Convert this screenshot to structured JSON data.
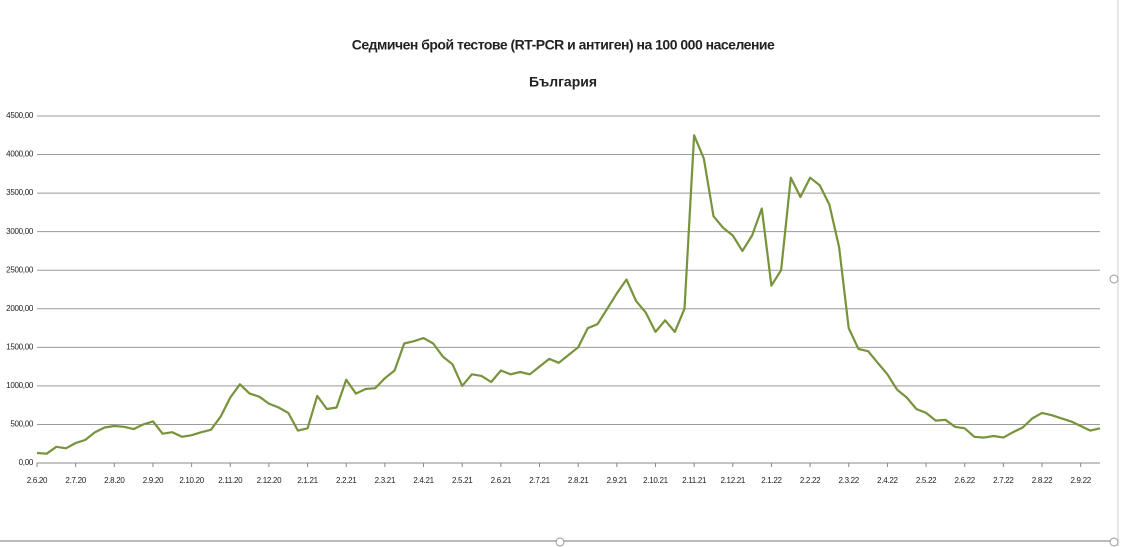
{
  "chart_data": {
    "type": "line",
    "title": "Седмичен брой тестове (RT-PCR и антиген) на 100 000 население",
    "subtitle": "България",
    "categories": [
      "2.6.20",
      null,
      null,
      null,
      "2.7.20",
      null,
      null,
      null,
      "2.8.20",
      null,
      null,
      null,
      "2.9.20",
      null,
      null,
      null,
      "2.10.20",
      null,
      null,
      null,
      "2.11.20",
      null,
      null,
      null,
      "2.12.20",
      null,
      null,
      null,
      "2.1.21",
      null,
      null,
      null,
      "2.2.21",
      null,
      null,
      null,
      "2.3.21",
      null,
      null,
      null,
      "2.4.21",
      null,
      null,
      null,
      "2.5.21",
      null,
      null,
      null,
      "2.6.21",
      null,
      null,
      null,
      "2.7.21",
      null,
      null,
      null,
      "2.8.21",
      null,
      null,
      null,
      "2.9.21",
      null,
      null,
      null,
      "2.10.21",
      null,
      null,
      null,
      "2.11.21",
      null,
      null,
      null,
      "2.12.21",
      null,
      null,
      null,
      "2.1.22",
      null,
      null,
      null,
      "2.2.22",
      null,
      null,
      null,
      "2.3.22",
      null,
      null,
      null,
      "2.4.22",
      null,
      null,
      null,
      "2.5.22",
      null,
      null,
      null,
      "2.6.22",
      null,
      null,
      null,
      "2.7.22",
      null,
      null,
      null,
      "2.8.22",
      null,
      null,
      null,
      "2.9.22",
      null,
      null
    ],
    "series": [
      {
        "color": "#77933c",
        "values": [
          130,
          120,
          210,
          190,
          260,
          300,
          400,
          460,
          480,
          470,
          440,
          500,
          540,
          380,
          400,
          340,
          360,
          400,
          430,
          600,
          850,
          1020,
          900,
          860,
          770,
          720,
          650,
          420,
          450,
          870,
          700,
          720,
          1080,
          900,
          960,
          970,
          1100,
          1200,
          1550,
          1580,
          1620,
          1550,
          1380,
          1280,
          1000,
          1150,
          1130,
          1050,
          1200,
          1150,
          1180,
          1150,
          1250,
          1350,
          1300,
          1400,
          1500,
          1750,
          1800,
          2000,
          2200,
          2380,
          2100,
          1950,
          1700,
          1850,
          1700,
          2000,
          4250,
          3950,
          3200,
          3050,
          2950,
          2750,
          2950,
          3300,
          2300,
          2500,
          3700,
          3450,
          3700,
          3600,
          3350,
          2800,
          1750,
          1480,
          1450,
          1300,
          1150,
          950,
          850,
          700,
          650,
          550,
          560,
          470,
          450,
          340,
          330,
          350,
          330,
          400,
          460,
          580,
          650,
          620,
          580,
          540,
          480,
          420,
          450
        ]
      }
    ],
    "ylim": [
      0,
      4500
    ],
    "yticks": [
      {
        "value": 0,
        "label": "0,00"
      },
      {
        "value": 500,
        "label": "500,00"
      },
      {
        "value": 1000,
        "label": "1000,00"
      },
      {
        "value": 1500,
        "label": "1500,00"
      },
      {
        "value": 2000,
        "label": "2000,00"
      },
      {
        "value": 2500,
        "label": "2500,00"
      },
      {
        "value": 3000,
        "label": "3000,00"
      },
      {
        "value": 3500,
        "label": "3500,00"
      },
      {
        "value": 4000,
        "label": "4000,00"
      },
      {
        "value": 4500,
        "label": "4500,00"
      }
    ],
    "grid": true
  }
}
